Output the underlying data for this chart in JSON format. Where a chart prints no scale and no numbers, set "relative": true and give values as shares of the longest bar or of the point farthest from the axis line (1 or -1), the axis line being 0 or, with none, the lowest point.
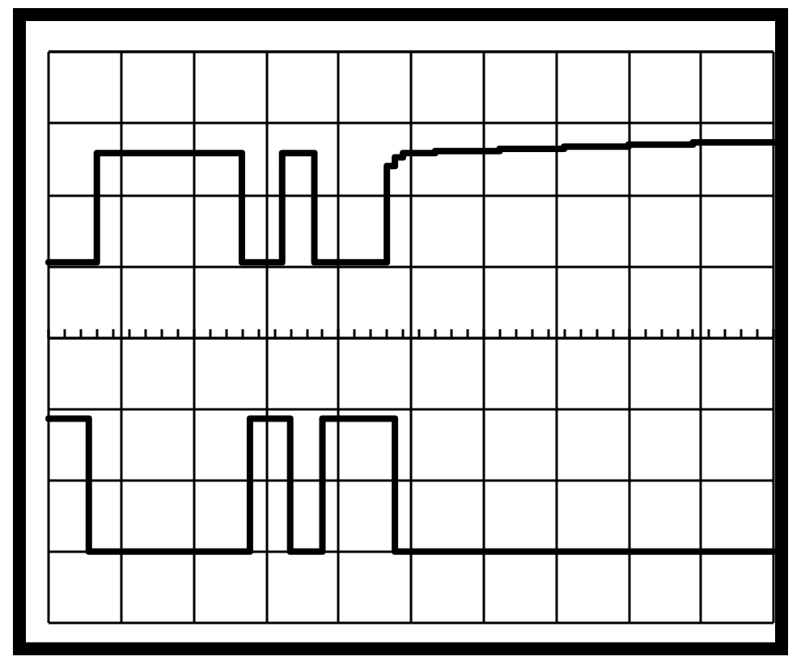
{
  "chart_data": {
    "type": "step",
    "relative": true,
    "grid": true,
    "categories": [
      null,
      null,
      null,
      null,
      null,
      null,
      null,
      null,
      null,
      null,
      null,
      null,
      null,
      null,
      null,
      null,
      null,
      null,
      null,
      null,
      null,
      null,
      null,
      null,
      null,
      null,
      null,
      null,
      null,
      null,
      null,
      null,
      null,
      null,
      null,
      null,
      null,
      null,
      null,
      null,
      null,
      null,
      null,
      null,
      null,
      null,
      null,
      null,
      null,
      null,
      null,
      null,
      null,
      null,
      null,
      null,
      null,
      null,
      null,
      null,
      null,
      null,
      null,
      null,
      null,
      null,
      null,
      null,
      null,
      null,
      null,
      null,
      null,
      null,
      null,
      null,
      null,
      null,
      null,
      null,
      null,
      null,
      null,
      null,
      null,
      null,
      null,
      null,
      null,
      null,
      null
    ],
    "series": [
      {
        "color": "#000000",
        "values": [
          0.35,
          0.35,
          0.35,
          0.35,
          0.35,
          0.35,
          0.86,
          0.86,
          0.86,
          0.86,
          0.86,
          0.86,
          0.86,
          0.86,
          0.86,
          0.86,
          0.86,
          0.86,
          0.86,
          0.86,
          0.86,
          0.86,
          0.86,
          0.86,
          0.35,
          0.35,
          0.35,
          0.35,
          0.35,
          0.86,
          0.86,
          0.86,
          0.86,
          0.35,
          0.35,
          0.35,
          0.35,
          0.35,
          0.35,
          0.35,
          0.35,
          0.35,
          0.8,
          0.84,
          0.86,
          0.86,
          0.86,
          0.86,
          0.87,
          0.87,
          0.87,
          0.87,
          0.87,
          0.87,
          0.87,
          0.87,
          0.88,
          0.88,
          0.88,
          0.88,
          0.88,
          0.88,
          0.88,
          0.88,
          0.89,
          0.89,
          0.89,
          0.89,
          0.89,
          0.89,
          0.89,
          0.89,
          0.9,
          0.9,
          0.9,
          0.9,
          0.9,
          0.9,
          0.9,
          0.9,
          0.91,
          0.91,
          0.91,
          0.91,
          0.91,
          0.91,
          0.91,
          0.91,
          0.91,
          0.91,
          0.91
        ]
      },
      {
        "color": "#000000",
        "values": [
          -0.38,
          -0.38,
          -0.38,
          -0.38,
          -0.38,
          -1,
          -1,
          -1,
          -1,
          -1,
          -1,
          -1,
          -1,
          -1,
          -1,
          -1,
          -1,
          -1,
          -1,
          -1,
          -1,
          -1,
          -1,
          -1,
          -1,
          -0.38,
          -0.38,
          -0.38,
          -0.38,
          -0.38,
          -1,
          -1,
          -1,
          -1,
          -0.38,
          -0.38,
          -0.38,
          -0.38,
          -0.38,
          -0.38,
          -0.38,
          -0.38,
          -0.38,
          -1,
          -1,
          -1,
          -1,
          -1,
          -1,
          -1,
          -1,
          -1,
          -1,
          -1,
          -1,
          -1,
          -1,
          -1,
          -1,
          -1,
          -1,
          -1,
          -1,
          -1,
          -1,
          -1,
          -1,
          -1,
          -1,
          -1,
          -1,
          -1,
          -1,
          -1,
          -1,
          -1,
          -1,
          -1,
          -1,
          -1,
          -1,
          -1,
          -1,
          -1,
          -1,
          -1,
          -1,
          -1,
          -1,
          -1,
          -1
        ]
      }
    ]
  }
}
